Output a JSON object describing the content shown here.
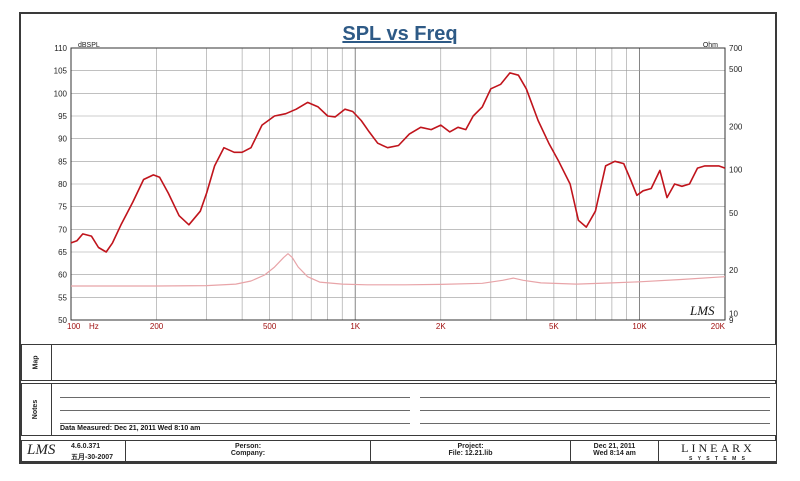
{
  "chart_data": {
    "type": "line",
    "title": "SPL vs Freq",
    "xscale": "log",
    "xlim": [
      100,
      20000
    ],
    "x_ticks": [
      100,
      200,
      500,
      1000,
      2000,
      5000,
      10000,
      20000
    ],
    "x_tick_labels": [
      "100",
      "200",
      "500",
      "1K",
      "2K",
      "5K",
      "10K",
      "20K"
    ],
    "x_unit": "Hz",
    "ylim": [
      50,
      110
    ],
    "y_ticks": [
      50,
      55,
      60,
      65,
      70,
      75,
      80,
      85,
      90,
      95,
      100,
      105,
      110
    ],
    "y_unit": "dBSPL",
    "y2scale": "log",
    "y2lim": [
      9,
      700
    ],
    "y2_ticks": [
      9,
      10,
      20,
      50,
      100,
      200,
      500,
      700
    ],
    "y2_unit": "Ohm",
    "grid": true,
    "series": [
      {
        "axis": "left",
        "color": "#c0141c",
        "x": [
          100,
          105,
          110,
          118,
          125,
          133,
          140,
          150,
          165,
          180,
          195,
          205,
          220,
          240,
          260,
          285,
          300,
          320,
          345,
          375,
          400,
          430,
          470,
          520,
          570,
          620,
          680,
          740,
          800,
          850,
          920,
          980,
          1050,
          1120,
          1200,
          1300,
          1420,
          1550,
          1700,
          1850,
          2000,
          2150,
          2300,
          2450,
          2600,
          2800,
          3000,
          3250,
          3500,
          3750,
          4000,
          4400,
          4800,
          5200,
          5700,
          6100,
          6500,
          7000,
          7600,
          8200,
          8800,
          9300,
          9800,
          10300,
          11000,
          11800,
          12500,
          13300,
          14100,
          15000,
          16000,
          17000,
          18000,
          19000,
          20000
        ],
        "y": [
          67,
          67.5,
          69,
          68.5,
          66,
          65,
          67,
          71,
          76,
          81,
          82,
          81.5,
          78,
          73,
          71,
          74,
          78,
          84,
          88,
          87,
          87,
          88,
          93,
          95,
          95.5,
          96.5,
          98,
          97,
          95,
          94.8,
          96.5,
          96,
          94,
          91.5,
          89,
          88,
          88.5,
          91,
          92.5,
          92,
          93,
          91.5,
          92.5,
          92,
          95,
          97,
          101,
          102,
          104.5,
          104,
          101,
          94,
          89,
          85,
          80,
          72,
          70.5,
          74,
          84,
          85,
          84.5,
          81,
          77.5,
          78.5,
          79,
          83,
          77,
          80,
          79.5,
          80,
          83.5,
          84,
          84,
          84,
          83.5
        ]
      },
      {
        "axis": "right",
        "color": "#e8a4a8",
        "x": [
          100,
          200,
          300,
          380,
          430,
          480,
          520,
          560,
          580,
          600,
          630,
          680,
          750,
          900,
          1100,
          1500,
          2000,
          2800,
          3300,
          3600,
          3900,
          4500,
          6000,
          8000,
          10000,
          14000,
          20000
        ],
        "y": [
          15.5,
          15.5,
          15.6,
          16,
          16.8,
          18.5,
          21,
          24.5,
          26,
          24.5,
          21,
          18,
          16.5,
          16,
          15.8,
          15.8,
          15.9,
          16.2,
          17,
          17.6,
          17,
          16.3,
          16,
          16.3,
          16.6,
          17.2,
          18
        ]
      }
    ]
  },
  "watermark": "LMS",
  "panels": {
    "map_label": "Map",
    "notes_label": "Notes",
    "data_measured": "Data Measured: Dec 21, 2011  Wed  8:10 am"
  },
  "footer": {
    "logo": "LMS",
    "version": "4.6.0.371",
    "version_date": "五月-30-2007",
    "person_label": "Person:",
    "company_label": "Company:",
    "project_label": "Project:",
    "file_label": "File: 12.21.lib",
    "date": "Dec 21, 2011",
    "time": "Wed  8:14 am",
    "brand": "LINEARX",
    "brand_sub": "S Y S T E M S"
  }
}
